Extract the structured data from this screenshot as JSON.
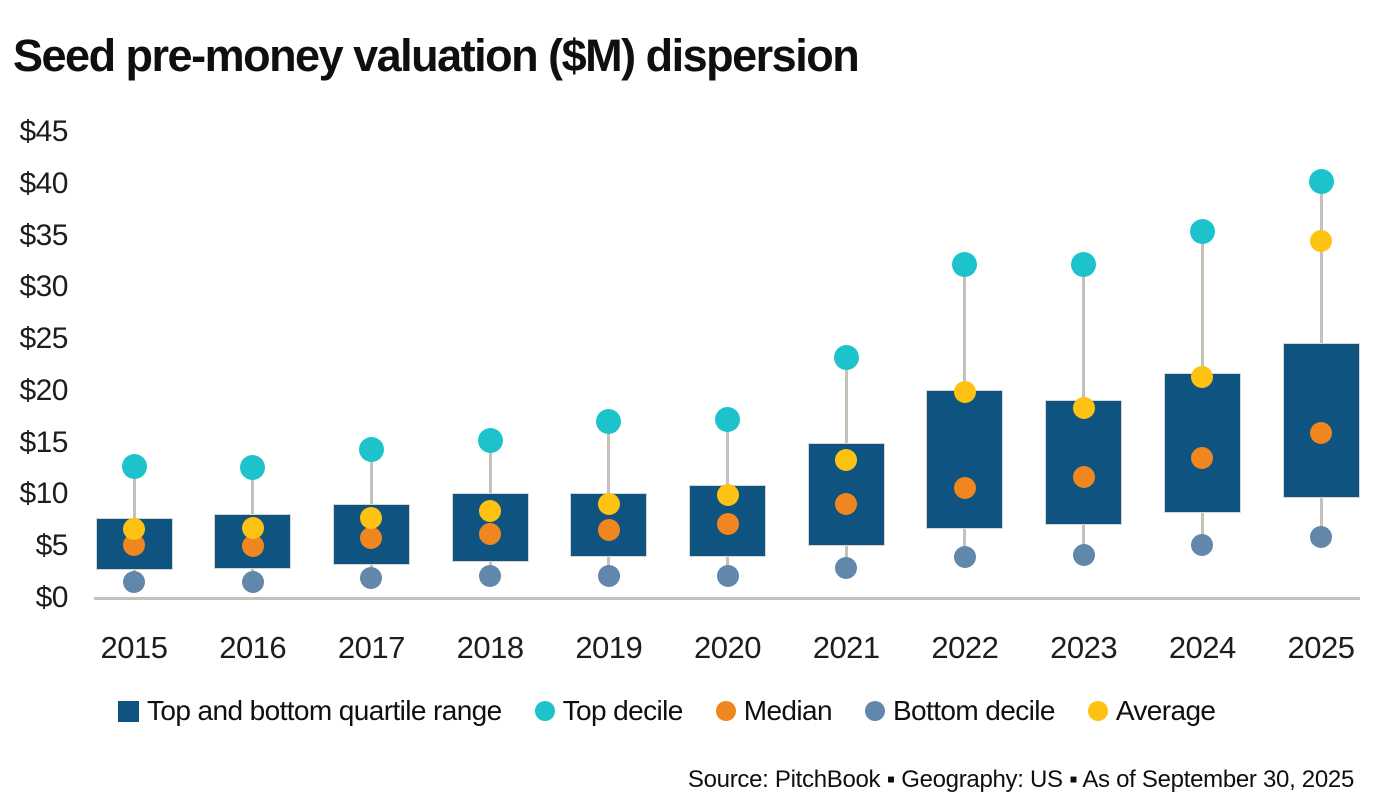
{
  "title": "Seed pre-money valuation ($M) dispersion",
  "source_line": "Source: PitchBook ▪ Geography: US ▪ As of September 30, 2025",
  "colors": {
    "box": "#0f5380",
    "top_decile": "#1dc3cb",
    "median": "#f0861f",
    "bottom_decile": "#6187ab",
    "average": "#fdc212",
    "whisker": "#c6c1b8",
    "axis": "#c6c1b8",
    "text": "#0f0f0f"
  },
  "y_axis": {
    "ticks": [
      "$45",
      "$40",
      "$35",
      "$30",
      "$25",
      "$20",
      "$15",
      "$10",
      "$5",
      "$0"
    ]
  },
  "legend": {
    "items": [
      {
        "label": "Top and bottom quartile range",
        "shape": "square",
        "color_key": "box"
      },
      {
        "label": "Top decile",
        "shape": "circle",
        "color_key": "top_decile"
      },
      {
        "label": "Median",
        "shape": "circle",
        "color_key": "median"
      },
      {
        "label": "Bottom decile",
        "shape": "circle",
        "color_key": "bottom_decile"
      },
      {
        "label": "Average",
        "shape": "circle",
        "color_key": "average"
      }
    ]
  },
  "chart_data": {
    "type": "boxplot",
    "title": "Seed pre-money valuation ($M) dispersion",
    "categories": [
      "2015",
      "2016",
      "2017",
      "2018",
      "2019",
      "2020",
      "2021",
      "2022",
      "2023",
      "2024",
      "2025"
    ],
    "series": [
      {
        "name": "Top decile",
        "values": [
          12.7,
          12.6,
          14.3,
          15.2,
          17.0,
          17.2,
          23.2,
          32.2,
          32.2,
          35.4,
          40.2
        ]
      },
      {
        "name": "Top quartile",
        "values": [
          7.7,
          8.1,
          9.1,
          10.1,
          10.1,
          10.9,
          15.0,
          20.1,
          19.1,
          21.7,
          24.6
        ]
      },
      {
        "name": "Average",
        "values": [
          6.7,
          6.8,
          7.7,
          8.4,
          9.1,
          9.9,
          13.3,
          19.9,
          18.3,
          21.3,
          34.5
        ]
      },
      {
        "name": "Median",
        "values": [
          5.1,
          5.0,
          5.8,
          6.2,
          6.6,
          7.1,
          9.1,
          10.6,
          11.7,
          13.5,
          15.9
        ]
      },
      {
        "name": "Bottom quartile",
        "values": [
          2.7,
          2.8,
          3.2,
          3.5,
          4.0,
          4.0,
          5.0,
          6.7,
          7.0,
          8.2,
          9.7
        ]
      },
      {
        "name": "Bottom decile",
        "values": [
          1.5,
          1.5,
          1.9,
          2.1,
          2.1,
          2.1,
          2.9,
          4.0,
          4.2,
          5.1,
          5.9
        ]
      }
    ],
    "ylim": [
      0,
      45
    ],
    "ytick_step": 5,
    "ytick_prefix": "$",
    "grid": false,
    "legend_position": "bottom"
  }
}
